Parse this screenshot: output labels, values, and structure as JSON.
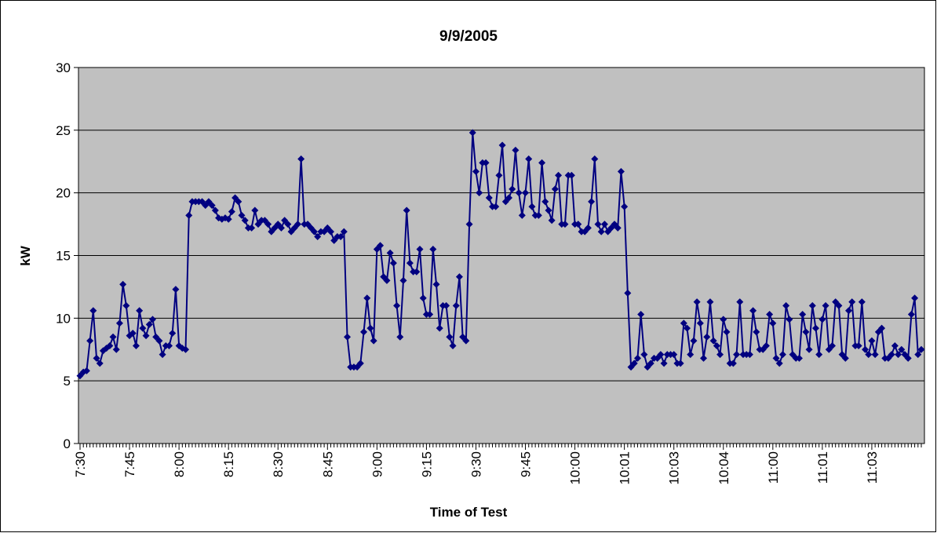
{
  "chart_data": {
    "type": "line",
    "title": "9/9/2005",
    "x_label": "Time of Test",
    "y_label": "kW",
    "ylim": [
      0,
      30
    ],
    "yticks": [
      0,
      5,
      10,
      15,
      20,
      25,
      30
    ],
    "grid": true,
    "categories": [
      "7:30",
      null,
      null,
      null,
      null,
      null,
      null,
      null,
      null,
      null,
      null,
      null,
      null,
      null,
      null,
      "7:45",
      null,
      null,
      null,
      null,
      null,
      null,
      null,
      null,
      null,
      null,
      null,
      null,
      null,
      null,
      "8:00",
      null,
      null,
      null,
      null,
      null,
      null,
      null,
      null,
      null,
      null,
      null,
      null,
      null,
      null,
      "8:15",
      null,
      null,
      null,
      null,
      null,
      null,
      null,
      null,
      null,
      null,
      null,
      null,
      null,
      null,
      "8:30",
      null,
      null,
      null,
      null,
      null,
      null,
      null,
      null,
      null,
      null,
      null,
      null,
      null,
      null,
      "8:45",
      null,
      null,
      null,
      null,
      null,
      null,
      null,
      null,
      null,
      null,
      null,
      null,
      null,
      null,
      "9:00",
      null,
      null,
      null,
      null,
      null,
      null,
      null,
      null,
      null,
      null,
      null,
      null,
      null,
      null,
      "9:15",
      null,
      null,
      null,
      null,
      null,
      null,
      null,
      null,
      null,
      null,
      null,
      null,
      null,
      null,
      "9:30",
      null,
      null,
      null,
      null,
      null,
      null,
      null,
      null,
      null,
      null,
      null,
      null,
      null,
      null,
      "9:45",
      null,
      null,
      null,
      null,
      null,
      null,
      null,
      null,
      null,
      null,
      null,
      null,
      null,
      null,
      "10:00",
      null,
      null,
      null,
      null,
      null,
      null,
      null,
      null,
      null,
      null,
      null,
      null,
      null,
      null,
      "10:01",
      null,
      null,
      null,
      null,
      null,
      null,
      null,
      null,
      null,
      null,
      null,
      null,
      null,
      null,
      "10:03",
      null,
      null,
      null,
      null,
      null,
      null,
      null,
      null,
      null,
      null,
      null,
      null,
      null,
      null,
      "10:04",
      null,
      null,
      null,
      null,
      null,
      null,
      null,
      null,
      null,
      null,
      null,
      null,
      null,
      null,
      "11:00",
      null,
      null,
      null,
      null,
      null,
      null,
      null,
      null,
      null,
      null,
      null,
      null,
      null,
      null,
      "11:01",
      null,
      null,
      null,
      null,
      null,
      null,
      null,
      null,
      null,
      null,
      null,
      null,
      null,
      null,
      "11:03",
      null,
      null,
      null,
      null,
      null,
      null,
      null,
      null,
      null,
      null,
      null,
      null,
      null,
      null,
      null
    ],
    "series": [
      {
        "color": "#000080",
        "values": [
          5.4,
          5.7,
          5.8,
          8.2,
          10.6,
          6.8,
          6.4,
          7.4,
          7.6,
          7.8,
          8.5,
          7.5,
          9.6,
          12.7,
          11.0,
          8.6,
          8.8,
          7.8,
          10.6,
          9.2,
          8.6,
          9.5,
          9.9,
          8.5,
          8.2,
          7.1,
          7.8,
          7.8,
          8.8,
          12.3,
          7.8,
          7.6,
          7.5,
          18.2,
          19.3,
          19.3,
          19.3,
          19.3,
          19.0,
          19.3,
          19.0,
          18.6,
          18.0,
          17.9,
          18.0,
          17.9,
          18.5,
          19.6,
          19.3,
          18.2,
          17.8,
          17.2,
          17.2,
          18.6,
          17.5,
          17.8,
          17.8,
          17.5,
          16.9,
          17.2,
          17.5,
          17.2,
          17.8,
          17.5,
          16.9,
          17.2,
          17.5,
          22.7,
          17.5,
          17.5,
          17.2,
          16.9,
          16.5,
          16.9,
          16.9,
          17.2,
          16.9,
          16.2,
          16.5,
          16.5,
          16.9,
          8.5,
          6.1,
          6.1,
          6.1,
          6.4,
          8.9,
          11.6,
          9.2,
          8.2,
          15.5,
          15.8,
          13.3,
          13.0,
          15.2,
          14.4,
          11.0,
          8.5,
          13.0,
          18.6,
          14.4,
          13.7,
          13.7,
          15.5,
          11.6,
          10.3,
          10.3,
          15.5,
          12.7,
          9.2,
          11.0,
          11.0,
          8.5,
          7.8,
          11.0,
          13.3,
          8.5,
          8.2,
          17.5,
          24.8,
          21.7,
          20.0,
          22.4,
          22.4,
          19.6,
          18.9,
          18.9,
          21.4,
          23.8,
          19.3,
          19.6,
          20.3,
          23.4,
          20.0,
          18.2,
          20.0,
          22.7,
          18.9,
          18.2,
          18.2,
          22.4,
          19.3,
          18.6,
          17.8,
          20.3,
          21.4,
          17.5,
          17.5,
          21.4,
          21.4,
          17.5,
          17.5,
          16.9,
          16.9,
          17.2,
          19.3,
          22.7,
          17.5,
          16.9,
          17.5,
          16.9,
          17.2,
          17.5,
          17.2,
          21.7,
          18.9,
          12.0,
          6.1,
          6.4,
          6.8,
          10.3,
          7.1,
          6.1,
          6.4,
          6.8,
          6.8,
          7.1,
          6.4,
          7.1,
          7.1,
          7.1,
          6.4,
          6.4,
          9.6,
          9.2,
          7.1,
          8.2,
          11.3,
          9.6,
          6.8,
          8.5,
          11.3,
          8.2,
          7.8,
          7.1,
          9.9,
          8.9,
          6.4,
          6.4,
          7.1,
          11.3,
          7.1,
          7.1,
          7.1,
          10.6,
          8.9,
          7.5,
          7.5,
          7.8,
          10.3,
          9.6,
          6.8,
          6.4,
          7.1,
          11.0,
          9.9,
          7.1,
          6.8,
          6.8,
          10.3,
          8.9,
          7.5,
          11.0,
          9.2,
          7.1,
          9.9,
          11.0,
          7.5,
          7.8,
          11.3,
          11.0,
          7.1,
          6.8,
          10.6,
          11.3,
          7.8,
          7.8,
          11.3,
          7.5,
          7.1,
          8.2,
          7.1,
          8.9,
          9.2,
          6.8,
          6.8,
          7.1,
          7.8,
          7.1,
          7.5,
          7.1,
          6.8,
          10.3,
          11.6,
          7.1,
          7.5
        ]
      }
    ]
  }
}
